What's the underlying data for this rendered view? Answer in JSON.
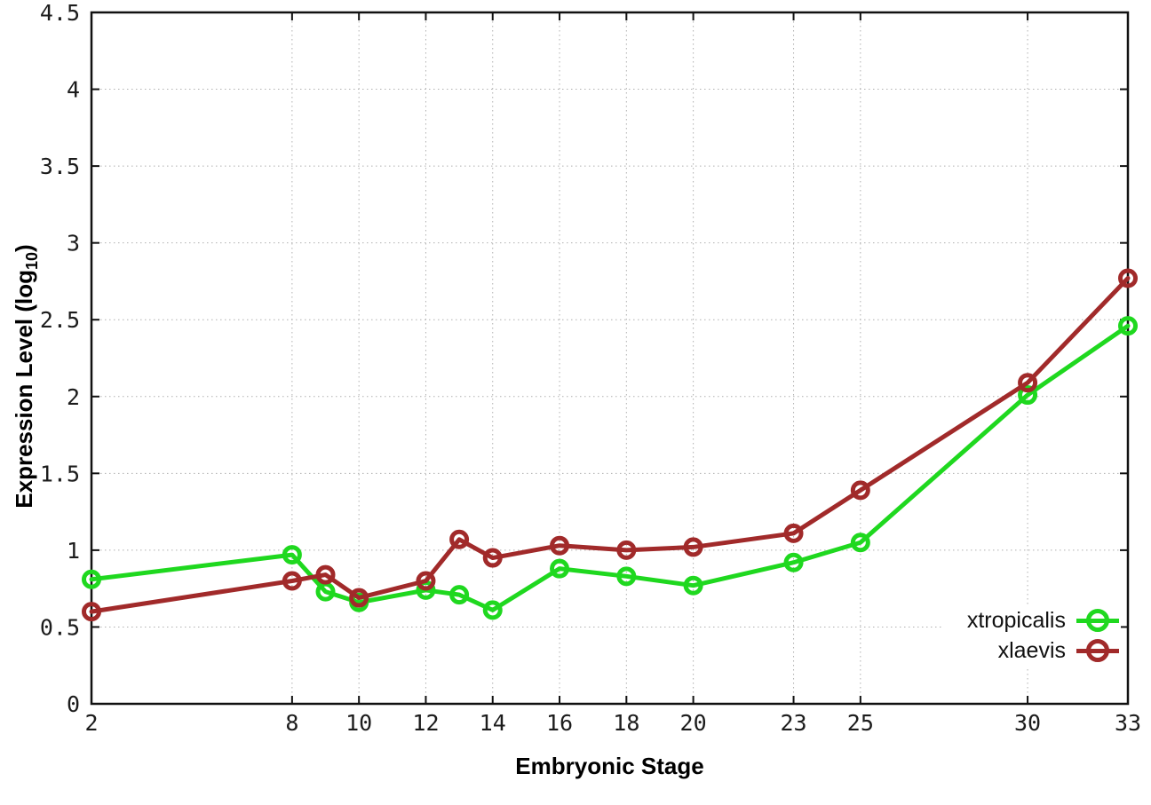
{
  "chart_data": {
    "type": "line",
    "title": "",
    "xlabel": "Embryonic Stage",
    "ylabel": "Expression Level (log10)",
    "ylabel_parts": {
      "main": "Expression Level (log",
      "sub": "10",
      "close": ")"
    },
    "xlim": [
      2,
      33
    ],
    "ylim": [
      0,
      4.5
    ],
    "x_ticks": [
      2,
      8,
      10,
      12,
      14,
      16,
      18,
      20,
      23,
      25,
      30,
      33
    ],
    "x_tick_labels": [
      "2",
      "8",
      "10",
      "12",
      "14",
      "16",
      "18",
      "20",
      "23",
      "25",
      "30",
      "33"
    ],
    "y_ticks": [
      0,
      0.5,
      1,
      1.5,
      2,
      2.5,
      3,
      3.5,
      4,
      4.5
    ],
    "y_tick_labels": [
      "0",
      "0.5",
      "1",
      "1.5",
      "2",
      "2.5",
      "3",
      "3.5",
      "4",
      "4.5"
    ],
    "grid": "dotted",
    "legend_position": "inside-bottom-right",
    "marker": "open-circle",
    "x": [
      2,
      8,
      9,
      10,
      12,
      13,
      14,
      16,
      18,
      20,
      23,
      25,
      30,
      33
    ],
    "series": [
      {
        "name": "xtropicalis",
        "color": "#1fd81f",
        "values": [
          0.81,
          0.97,
          0.73,
          0.66,
          0.74,
          0.71,
          0.61,
          0.88,
          0.83,
          0.77,
          0.92,
          1.05,
          2.01,
          2.46
        ]
      },
      {
        "name": "xlaevis",
        "color": "#a12a2a",
        "values": [
          0.6,
          0.8,
          0.84,
          0.69,
          0.8,
          1.07,
          0.95,
          1.03,
          1.0,
          1.02,
          1.11,
          1.39,
          2.09,
          2.77
        ]
      }
    ]
  }
}
